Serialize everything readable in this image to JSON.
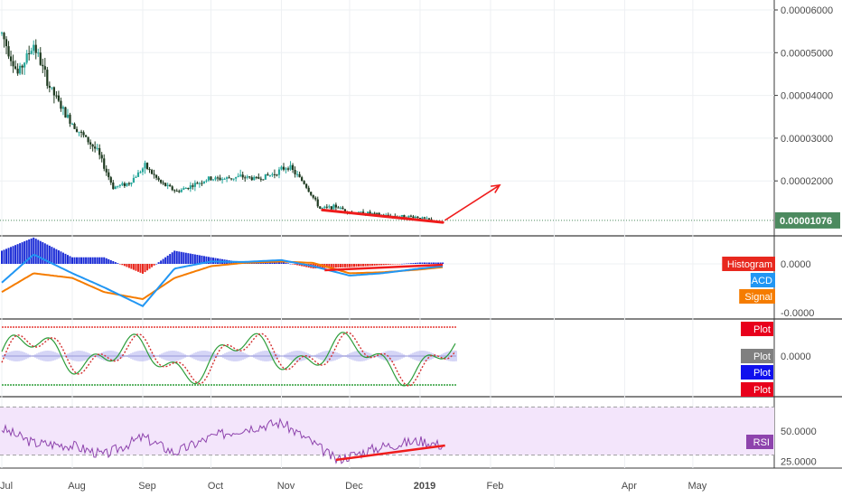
{
  "colors": {
    "up": "#26a69a",
    "down": "#1e3a20",
    "annotation": "#ef1c1c",
    "histogram_pos": "#1a2bd6",
    "histogram_neg": "#e8281e",
    "macd": "#2196f3",
    "signal": "#f57c00",
    "rsi": "#8e44ad",
    "rsi_band": "#f3e5fb",
    "last_price_bg": "#4c8a5f",
    "stoch_k": "#2e9d3a",
    "stoch_d": "#d32f2f"
  },
  "time_axis": [
    "Jul",
    "Aug",
    "Sep",
    "Oct",
    "Nov",
    "Dec",
    "2019",
    "Feb",
    "Apr",
    "May"
  ],
  "price_axis": [
    "0.00006000",
    "0.00005000",
    "0.00004000",
    "0.00003000",
    "0.00002000"
  ],
  "last_price": "0.00001076",
  "macd_axis": [
    "0.0000",
    "-0.0000"
  ],
  "macd_legend": {
    "histogram": "Histogram",
    "macd": "MACD",
    "signal": "Signal"
  },
  "osc_axis": [
    "0.0000"
  ],
  "osc_legend": {
    "plot1": "Plot",
    "plot2": "Plot",
    "plot3": "Plot",
    "plot4": "Plot"
  },
  "osc_legend_colors": [
    "#e8001c",
    "#808080",
    "#1010ee",
    "#e8001c"
  ],
  "rsi_axis": [
    "50.0000",
    "25.0000"
  ],
  "rsi_legend": "RSI",
  "chart_data": [
    {
      "type": "candlestick",
      "ylim": [
        1e-05,
        6.25e-05
      ],
      "x": [
        "2018-07-01",
        "2018-07-08",
        "2018-07-15",
        "2018-07-22",
        "2018-07-29",
        "2018-08-05",
        "2018-08-12",
        "2018-08-19",
        "2018-08-26",
        "2018-09-02",
        "2018-09-09",
        "2018-09-16",
        "2018-09-23",
        "2018-09-30",
        "2018-10-07",
        "2018-10-14",
        "2018-10-21",
        "2018-10-28",
        "2018-11-04",
        "2018-11-11",
        "2018-11-18",
        "2018-11-25",
        "2018-12-02",
        "2018-12-09",
        "2018-12-16",
        "2018-12-23",
        "2018-12-30",
        "2019-01-06"
      ],
      "close": [
        5.45e-05,
        4.5e-05,
        5.2e-05,
        4.2e-05,
        3.55e-05,
        3.1e-05,
        2.7e-05,
        1.85e-05,
        1.95e-05,
        2.35e-05,
        1.95e-05,
        1.75e-05,
        1.9e-05,
        2.05e-05,
        2.05e-05,
        2.1e-05,
        2.05e-05,
        2.15e-05,
        2.35e-05,
        1.95e-05,
        1.35e-05,
        1.4e-05,
        1.25e-05,
        1.25e-05,
        1.19e-05,
        1.17e-05,
        1.16e-05,
        1.076e-05
      ],
      "annotations": [
        {
          "kind": "trendline",
          "x": [
            "2018-11-19",
            "2019-01-11"
          ],
          "y": [
            1.32e-05,
            1.03e-05
          ]
        },
        {
          "kind": "arrow",
          "x": [
            "2019-01-12",
            "2019-02-05"
          ],
          "y": [
            1.08e-05,
            1.9e-05
          ]
        }
      ]
    },
    {
      "type": "bar+line",
      "name": "MACD",
      "ylim": [
        -1,
        1
      ],
      "x": [
        "2018-07-01",
        "2018-07-15",
        "2018-08-01",
        "2018-08-15",
        "2018-09-01",
        "2018-09-15",
        "2018-10-01",
        "2018-10-15",
        "2018-11-01",
        "2018-11-15",
        "2018-12-01",
        "2018-12-15",
        "2019-01-01",
        "2019-01-11"
      ],
      "series": [
        {
          "name": "MACD",
          "values": [
            -0.4,
            0.2,
            -0.2,
            -0.5,
            -0.9,
            -0.1,
            0.05,
            0.04,
            0.08,
            -0.05,
            -0.25,
            -0.2,
            -0.1,
            -0.05
          ]
        },
        {
          "name": "Signal",
          "values": [
            -0.6,
            -0.2,
            -0.3,
            -0.6,
            -0.75,
            -0.3,
            -0.05,
            0.02,
            0.05,
            0.02,
            -0.2,
            -0.18,
            -0.12,
            -0.07
          ]
        }
      ]
    },
    {
      "type": "line",
      "name": "RSI",
      "ylim": [
        16,
        68
      ],
      "x": [
        "2018-07-01",
        "2018-07-15",
        "2018-08-01",
        "2018-08-15",
        "2018-09-01",
        "2018-09-15",
        "2018-10-01",
        "2018-10-15",
        "2018-11-01",
        "2018-11-15",
        "2018-11-25",
        "2018-12-15",
        "2019-01-01",
        "2019-01-11"
      ],
      "values": [
        52,
        40,
        38,
        30,
        45,
        32,
        45,
        52,
        57,
        40,
        26,
        37,
        42,
        38
      ],
      "annotations": [
        {
          "kind": "trendline",
          "x": [
            "2018-11-25",
            "2019-01-12"
          ],
          "y": [
            26,
            38
          ]
        }
      ]
    }
  ]
}
